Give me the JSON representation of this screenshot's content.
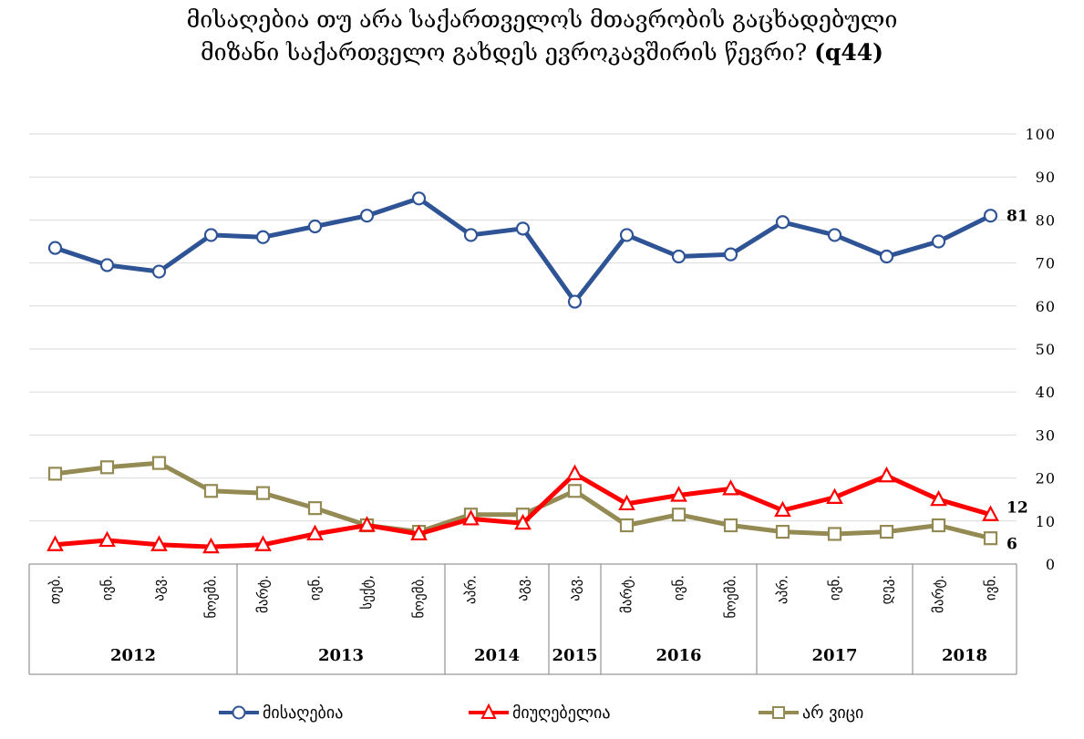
{
  "title": {
    "line1": "მისაღებია თუ არა საქართველოს მთავრობის გაცხადებული",
    "line2_main": "მიზანი საქართველო გახდეს ევროკავშირის წევრი?",
    "line2_code": "(q44)"
  },
  "chart_data": {
    "type": "line",
    "x_months": [
      "თებ.",
      "ივნ.",
      "აგვ.",
      "ნოემბ.",
      "მარტ.",
      "ივნ.",
      "სექტ,",
      "ნოემბ.",
      "აპრ.",
      "აგვ.",
      "აგვ.",
      "მარტ.",
      "ივნ.",
      "ნოემბ.",
      "აპრ.",
      "ივნ.",
      "დეკ.",
      "მარტ.",
      "ივნ."
    ],
    "year_groups": [
      {
        "label": "2012",
        "start": 0,
        "count": 4
      },
      {
        "label": "2013",
        "start": 4,
        "count": 4
      },
      {
        "label": "2014",
        "start": 8,
        "count": 2
      },
      {
        "label": "2015",
        "start": 10,
        "count": 1
      },
      {
        "label": "2016",
        "start": 11,
        "count": 3
      },
      {
        "label": "2017",
        "start": 14,
        "count": 3
      },
      {
        "label": "2018",
        "start": 17,
        "count": 2
      }
    ],
    "ylim": [
      0,
      100
    ],
    "yticks": [
      0,
      10,
      20,
      30,
      40,
      50,
      60,
      70,
      80,
      90,
      100
    ],
    "y_axis_side": "right",
    "grid": true,
    "series": [
      {
        "name": "მისაღებია",
        "color": "#2F5496",
        "marker": "circle",
        "values": [
          73.5,
          69.5,
          68,
          76.5,
          76,
          78.5,
          81,
          85,
          76.5,
          78,
          61,
          76.5,
          71.5,
          72,
          79.5,
          76.5,
          71.5,
          75,
          81
        ],
        "end_label": "81"
      },
      {
        "name": "მიუღებელია",
        "color": "#FF0000",
        "marker": "triangle",
        "values": [
          4.5,
          5.5,
          4.5,
          4,
          4.5,
          7,
          9,
          7,
          10.5,
          9.5,
          21,
          14,
          16,
          17.5,
          12.5,
          15.5,
          20.5,
          15,
          11.5
        ],
        "end_label": "12"
      },
      {
        "name": "არ ვიცი",
        "color": "#948A54",
        "marker": "square",
        "values": [
          21,
          22.5,
          23.5,
          17,
          16.5,
          13,
          9,
          7.5,
          11.5,
          11.5,
          17,
          9,
          11.5,
          9,
          7.5,
          7,
          7.5,
          9,
          6
        ],
        "end_label": "6"
      }
    ],
    "legend_position": "bottom"
  }
}
